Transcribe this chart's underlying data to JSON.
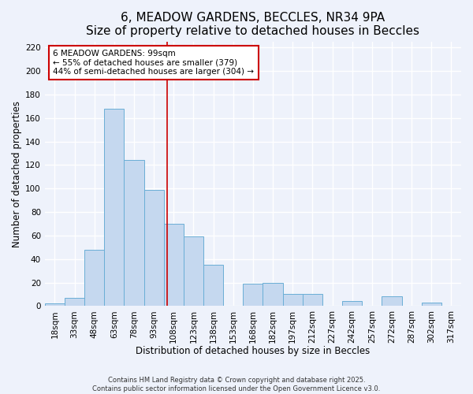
{
  "title": "6, MEADOW GARDENS, BECCLES, NR34 9PA",
  "subtitle": "Size of property relative to detached houses in Beccles",
  "xlabel": "Distribution of detached houses by size in Beccles",
  "ylabel": "Number of detached properties",
  "bar_labels": [
    "18sqm",
    "33sqm",
    "48sqm",
    "63sqm",
    "78sqm",
    "93sqm",
    "108sqm",
    "123sqm",
    "138sqm",
    "153sqm",
    "168sqm",
    "182sqm",
    "197sqm",
    "212sqm",
    "227sqm",
    "242sqm",
    "257sqm",
    "272sqm",
    "287sqm",
    "302sqm",
    "317sqm"
  ],
  "bar_values": [
    2,
    7,
    48,
    168,
    124,
    99,
    70,
    59,
    35,
    0,
    19,
    20,
    10,
    10,
    0,
    4,
    0,
    8,
    0,
    3,
    0
  ],
  "bar_color": "#c5d8ef",
  "bar_edge_color": "#6aaed6",
  "ylim": [
    0,
    225
  ],
  "yticks": [
    0,
    20,
    40,
    60,
    80,
    100,
    120,
    140,
    160,
    180,
    200,
    220
  ],
  "vline_x": 5.67,
  "annotation_title": "6 MEADOW GARDENS: 99sqm",
  "annotation_line1": "← 55% of detached houses are smaller (379)",
  "annotation_line2": "44% of semi-detached houses are larger (304) →",
  "annotation_box_color": "#ffffff",
  "annotation_box_edge_color": "#cc0000",
  "vline_color": "#cc0000",
  "footnote1": "Contains HM Land Registry data © Crown copyright and database right 2025.",
  "footnote2": "Contains public sector information licensed under the Open Government Licence v3.0.",
  "background_color": "#eef2fb",
  "grid_color": "#ffffff",
  "title_fontsize": 11,
  "axis_label_fontsize": 8.5,
  "tick_fontsize": 7.5,
  "annotation_fontsize": 7.5,
  "footnote_fontsize": 6.0
}
